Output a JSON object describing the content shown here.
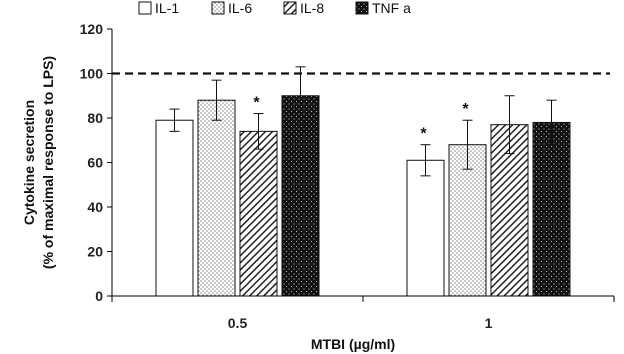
{
  "chart_data": {
    "type": "bar",
    "categories": [
      "0.5",
      "1"
    ],
    "xlabel": "MTBI (µg/ml)",
    "ylabel_lines": [
      "Cytokine secretion",
      "(% of maximal response to LPS)"
    ],
    "ylim": [
      0,
      120
    ],
    "yticks": [
      "0",
      "20",
      "40",
      "60",
      "80",
      "100",
      "120"
    ],
    "reference_line": {
      "y": 100,
      "style": "dashed"
    },
    "legend_position": "top",
    "series": [
      {
        "name": "IL-1",
        "pattern": "white",
        "values": [
          79,
          61
        ],
        "errors": [
          5,
          7
        ],
        "significant": [
          false,
          true
        ]
      },
      {
        "name": "IL-6",
        "pattern": "dots",
        "values": [
          88,
          68
        ],
        "errors": [
          9,
          11
        ],
        "significant": [
          false,
          true
        ]
      },
      {
        "name": "IL-8",
        "pattern": "hatch",
        "values": [
          74,
          77
        ],
        "errors": [
          8,
          13
        ],
        "significant": [
          true,
          false
        ]
      },
      {
        "name": "TNF a",
        "pattern": "black-dots",
        "values": [
          90,
          78
        ],
        "errors": [
          13,
          10
        ],
        "significant": [
          false,
          false
        ]
      }
    ],
    "significance_marker": "*"
  }
}
